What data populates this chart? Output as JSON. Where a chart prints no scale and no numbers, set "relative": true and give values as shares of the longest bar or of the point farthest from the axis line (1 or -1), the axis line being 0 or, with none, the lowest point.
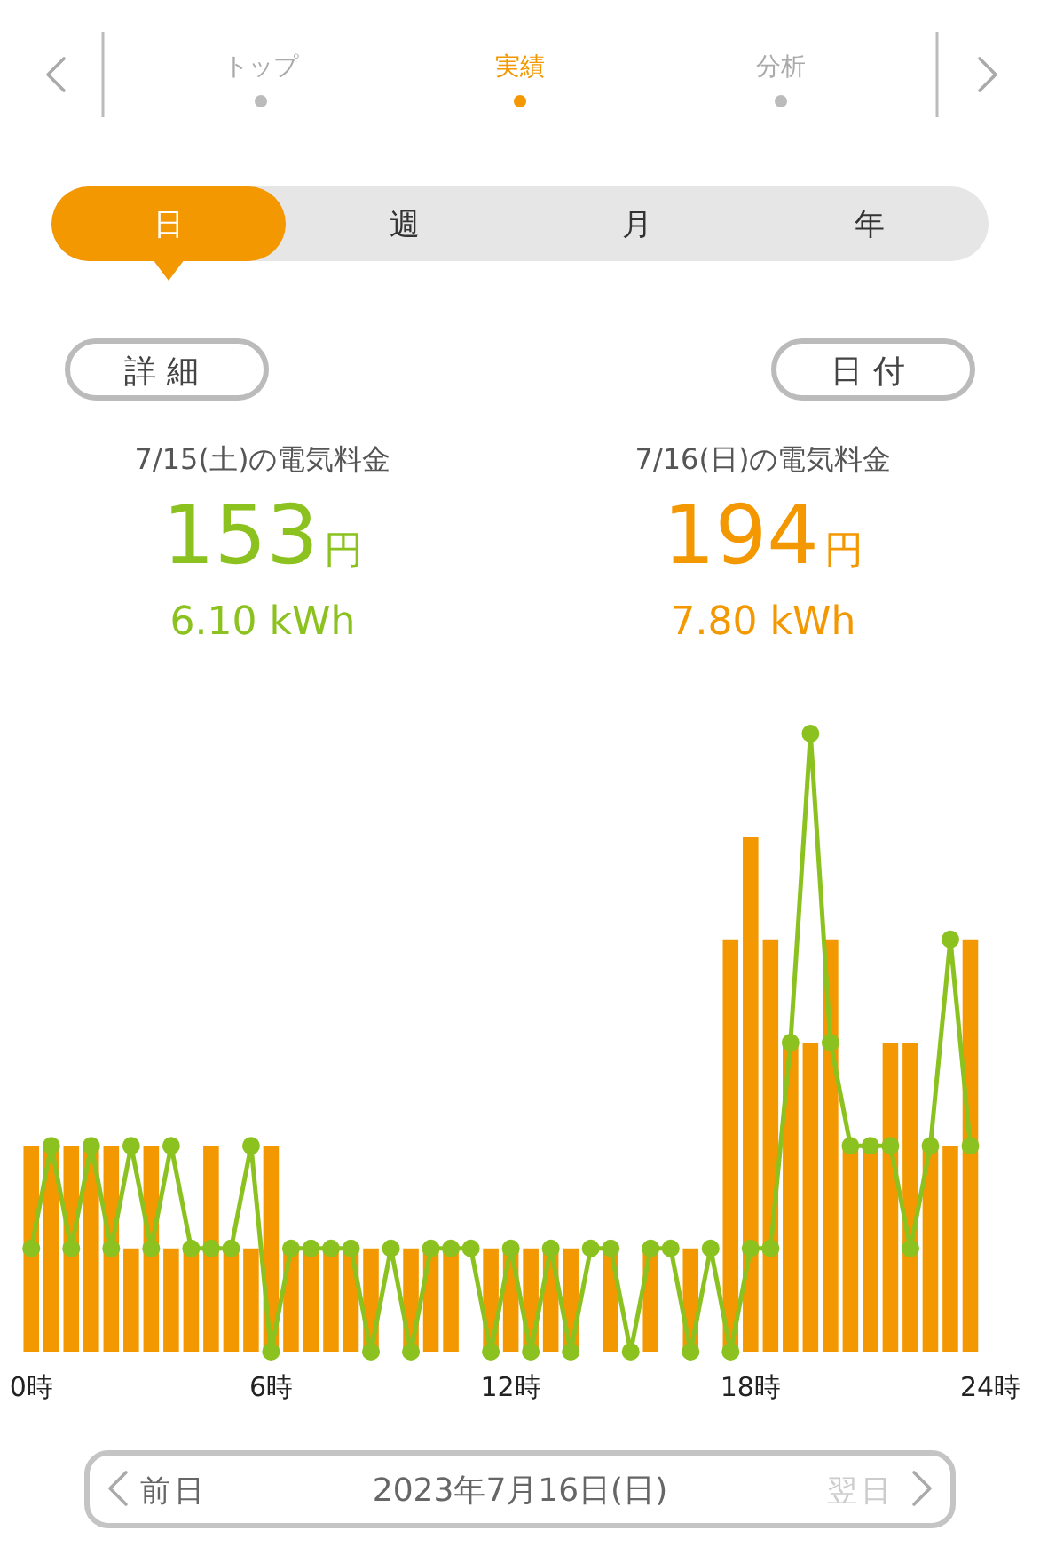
{
  "chart_data": {
    "type": "bar",
    "relative": true,
    "marker": "circle",
    "line_style": "solid",
    "tick_labels": "x",
    "x": [
      0,
      0.5,
      1,
      1.5,
      2,
      2.5,
      3,
      3.5,
      4,
      4.5,
      5,
      5.5,
      6,
      6.5,
      7,
      7.5,
      8,
      8.5,
      9,
      9.5,
      10,
      10.5,
      11,
      11.5,
      12,
      12.5,
      13,
      13.5,
      14,
      14.5,
      15,
      15.5,
      16,
      16.5,
      17,
      17.5,
      18,
      18.5,
      19,
      19.5,
      20,
      20.5,
      21,
      21.5,
      22,
      22.5,
      23,
      23.5
    ],
    "xlim": [
      -0.25,
      24
    ],
    "xticks": [
      {
        "value": 0,
        "label": "0時"
      },
      {
        "value": 6,
        "label": "6時"
      },
      {
        "value": 12,
        "label": "12時"
      },
      {
        "value": 18,
        "label": "18時"
      },
      {
        "value": 24,
        "label": "24時"
      }
    ],
    "series": [
      {
        "color": "#f39800",
        "values": [
          0.333,
          0.333,
          0.333,
          0.333,
          0.333,
          0.167,
          0.333,
          0.167,
          0.167,
          0.333,
          0.167,
          0.167,
          0.333,
          0.167,
          0.167,
          0.167,
          0.167,
          0.167,
          0,
          0.167,
          0.167,
          0.167,
          0,
          0.167,
          0.167,
          0.167,
          0.167,
          0.167,
          0,
          0.167,
          0,
          0.167,
          0,
          0.167,
          0,
          0.667,
          0.833,
          0.667,
          0.5,
          0.5,
          0.667,
          0.333,
          0.333,
          0.5,
          0.5,
          0.333,
          0.333,
          0.667
        ]
      },
      {
        "type": "line",
        "color": "#8cc21f",
        "values": [
          0.167,
          0.333,
          0.167,
          0.333,
          0.167,
          0.333,
          0.167,
          0.333,
          0.167,
          0.167,
          0.167,
          0.333,
          0,
          0.167,
          0.167,
          0.167,
          0.167,
          0,
          0.167,
          0,
          0.167,
          0.167,
          0.167,
          0,
          0.167,
          0,
          0.167,
          0,
          0.167,
          0.167,
          0,
          0.167,
          0.167,
          0,
          0.167,
          0,
          0.167,
          0.167,
          0.5,
          1,
          0.5,
          0.333,
          0.333,
          0.333,
          0.167,
          0.333,
          0.667,
          0.333
        ]
      }
    ],
    "annotations": [
      "トップ",
      "実績",
      "分析",
      "日",
      "週",
      "月",
      "年",
      "詳細",
      "日付",
      "7/15(土)の電気料金",
      "153円",
      "6.10 kWh",
      "7/16(日)の電気料金",
      "194円",
      "7.80 kWh",
      "前日",
      "2023年7月16日(日)",
      "翌日"
    ]
  }
}
